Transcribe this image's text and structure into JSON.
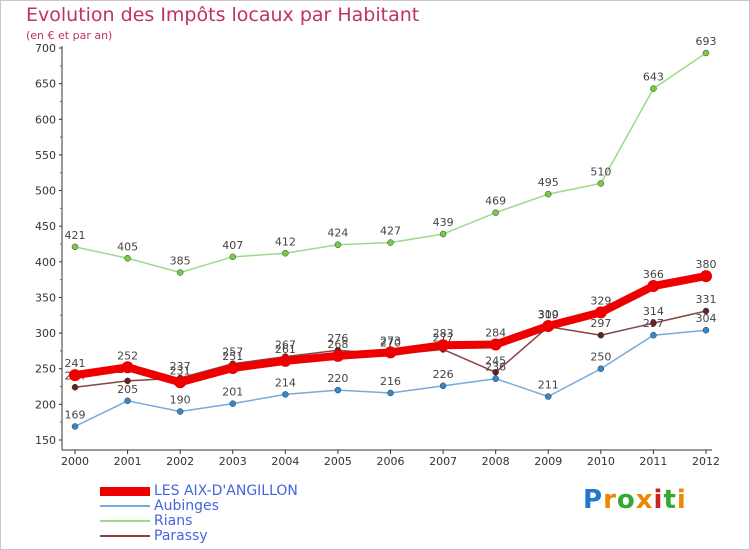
{
  "title": "Evolution des Impôts locaux par Habitant",
  "subtitle": "(en € et par an)",
  "logo_text": "Proxiti",
  "chart_data": {
    "type": "line",
    "x": [
      "2000",
      "2001",
      "2002",
      "2003",
      "2004",
      "2005",
      "2006",
      "2007",
      "2008",
      "2009",
      "2010",
      "2011",
      "2012"
    ],
    "ylim": [
      150,
      700
    ],
    "yticks": [
      "150",
      "200",
      "250",
      "300",
      "350",
      "400",
      "450",
      "500",
      "550",
      "600",
      "650",
      "700"
    ],
    "grid": false,
    "legend_position": "bottom-left",
    "series": [
      {
        "name": "Rians",
        "color": "#99dd88",
        "point_color": "#77cc44",
        "values": [
          421,
          405,
          385,
          407,
          412,
          424,
          427,
          439,
          469,
          495,
          510,
          643,
          693
        ]
      },
      {
        "name": "Aubinges",
        "color": "#77aadd",
        "point_color": "#3388cc",
        "values": [
          169,
          205,
          190,
          201,
          214,
          220,
          216,
          226,
          236,
          211,
          250,
          297,
          304
        ]
      },
      {
        "name": "Parassy",
        "color": "#884444",
        "point_color": "#662222",
        "values": [
          224,
          233,
          237,
          257,
          267,
          276,
          270,
          277,
          245,
          309,
          297,
          314,
          331
        ]
      },
      {
        "name": "LES AIX-D'ANGILLON",
        "color": "#ee0000",
        "point_color": "#ee0000",
        "values": [
          241,
          252,
          231,
          251,
          261,
          268,
          273,
          283,
          284,
          310,
          329,
          366,
          380
        ]
      }
    ],
    "data_labels": [
      [
        "421",
        "405",
        "385",
        "407",
        "412",
        "424",
        "427",
        "439",
        "469",
        "495",
        "510",
        "643",
        "693"
      ],
      [
        "169",
        "205",
        "190",
        "201",
        "214",
        "220",
        "216",
        "226",
        "236",
        "211",
        "250",
        "297",
        "304"
      ],
      [
        "224",
        "233",
        "237",
        "257",
        "267",
        "276",
        "270",
        "277",
        "245",
        "309",
        "297",
        "314",
        "331"
      ],
      [
        "241",
        "252",
        "231",
        "251",
        "261",
        "268",
        "273",
        "283",
        "284",
        "310",
        "329",
        "366",
        "380"
      ]
    ]
  },
  "legend": [
    {
      "label": "LES AIX-D'ANGILLON",
      "color": "#ee0000"
    },
    {
      "label": "Aubinges",
      "color": "#77aadd"
    },
    {
      "label": "Rians",
      "color": "#99dd88"
    },
    {
      "label": "Parassy",
      "color": "#884444"
    }
  ]
}
